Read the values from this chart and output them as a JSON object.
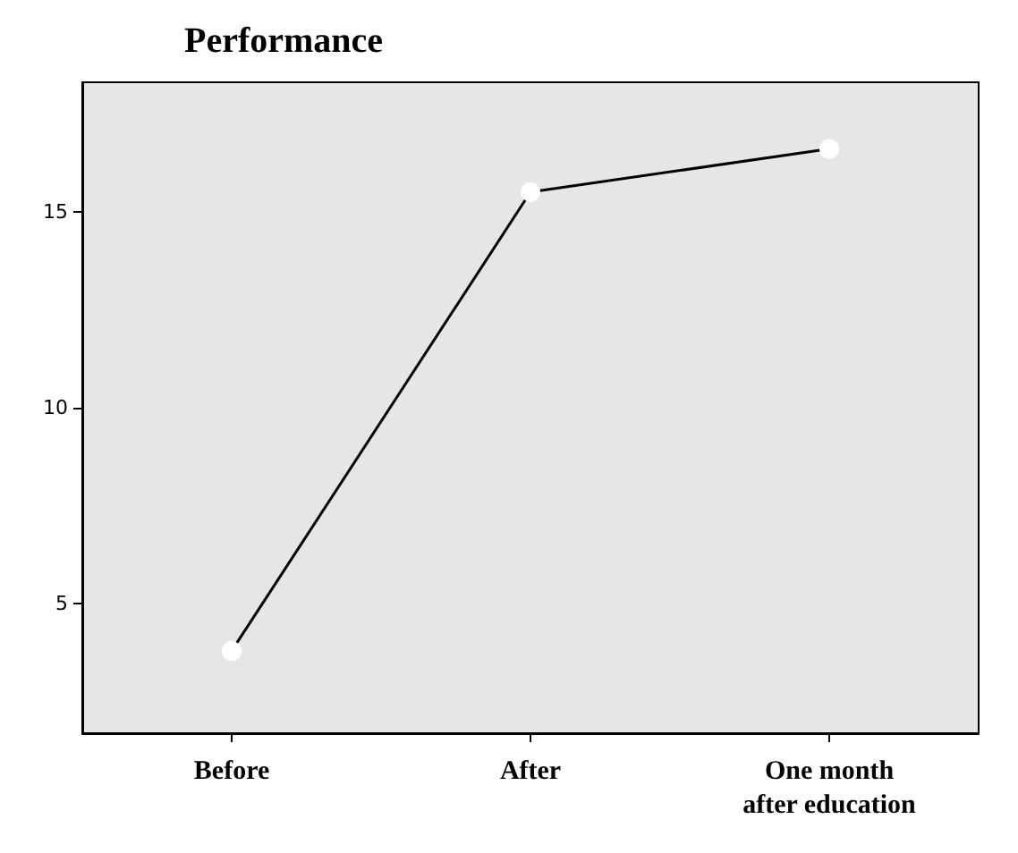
{
  "chart_data": {
    "type": "line",
    "title": "Performance",
    "categories": [
      "Before",
      "After",
      "One month\nafter education"
    ],
    "values": [
      3.8,
      15.5,
      16.6
    ],
    "color": "#000000",
    "ylim": [
      1.7,
      18.3
    ],
    "yticks": [
      5,
      10,
      15
    ],
    "grid": false,
    "marker": "circle",
    "line_style": "solid"
  }
}
